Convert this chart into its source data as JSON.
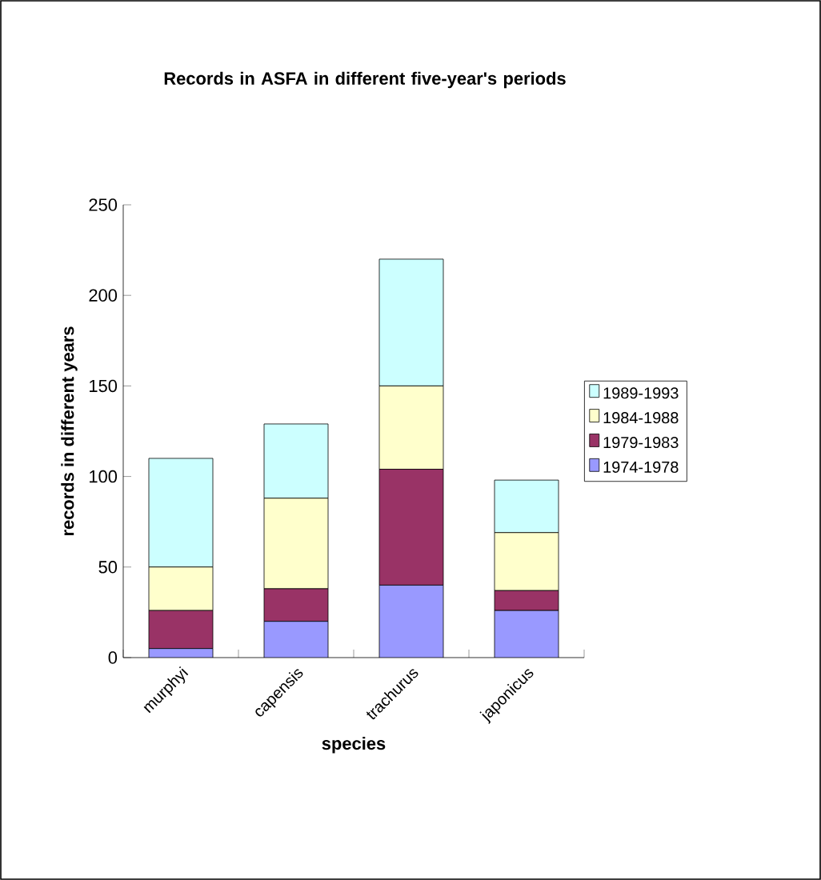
{
  "chart_data": {
    "type": "bar",
    "stacked": true,
    "title": "Records in ASFA  in different five-year's periods",
    "xlabel": "species",
    "ylabel": "records in different years",
    "categories": [
      "murphyi",
      "capensis",
      "trachurus",
      "japonicus"
    ],
    "series": [
      {
        "name": "1974-1978",
        "color": "#9999ff",
        "values": [
          5,
          20,
          40,
          26
        ]
      },
      {
        "name": "1979-1983",
        "color": "#993366",
        "values": [
          21,
          18,
          64,
          11
        ]
      },
      {
        "name": "1984-1988",
        "color": "#ffffcc",
        "values": [
          24,
          50,
          46,
          32
        ]
      },
      {
        "name": "1989-1993",
        "color": "#ccffff",
        "values": [
          60,
          41,
          70,
          29
        ]
      }
    ],
    "ylim": [
      0,
      250
    ],
    "yticks": [
      0,
      50,
      100,
      150,
      200,
      250
    ],
    "grid": false,
    "legend": "right"
  }
}
